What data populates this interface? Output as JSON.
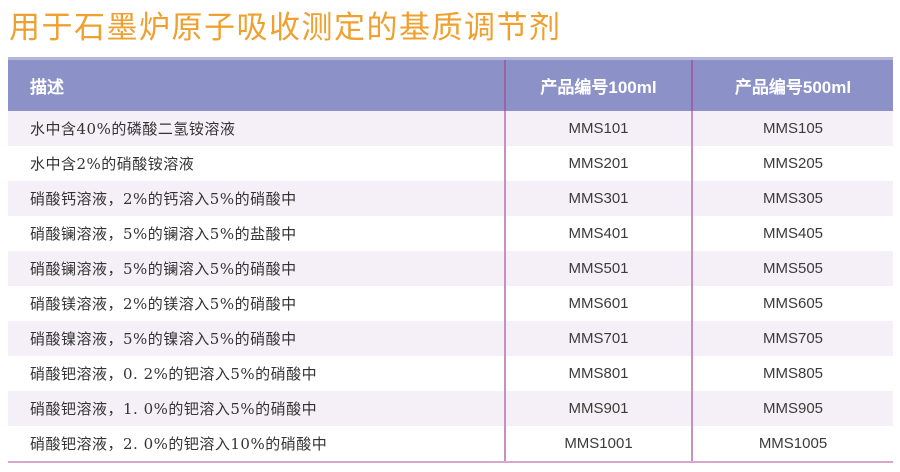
{
  "page_title": "用于石墨炉原子吸收测定的基质调节剂",
  "colors": {
    "title_orange": "#efa02f",
    "header_bg": "#8c92c8",
    "header_top_strip": "#b2b6db",
    "row_alt_lavender": "#f5f0f7",
    "divider_header": "#9b63a4",
    "divider_body": "#c98fc4",
    "bottom_border": "#d8a6cd",
    "body_text": "#333333"
  },
  "table": {
    "headers": {
      "description": "描述",
      "code_100ml": "产品编号100ml",
      "code_500ml": "产品编号500ml"
    },
    "rows": [
      {
        "description": "水中含40%的磷酸二氢铵溶液",
        "code_100ml": "MMS101",
        "code_500ml": "MMS105"
      },
      {
        "description": "水中含2%的硝酸铵溶液",
        "code_100ml": "MMS201",
        "code_500ml": "MMS205"
      },
      {
        "description": "硝酸钙溶液，2%的钙溶入5%的硝酸中",
        "code_100ml": "MMS301",
        "code_500ml": "MMS305"
      },
      {
        "description": "硝酸镧溶液，5%的镧溶入5%的盐酸中",
        "code_100ml": "MMS401",
        "code_500ml": "MMS405"
      },
      {
        "description": "硝酸镧溶液，5%的镧溶入5%的硝酸中",
        "code_100ml": "MMS501",
        "code_500ml": "MMS505"
      },
      {
        "description": "硝酸镁溶液，2%的镁溶入5%的硝酸中",
        "code_100ml": "MMS601",
        "code_500ml": "MMS605"
      },
      {
        "description": "硝酸镍溶液，5%的镍溶入5%的硝酸中",
        "code_100ml": "MMS701",
        "code_500ml": "MMS705"
      },
      {
        "description": "硝酸钯溶液，0. 2%的钯溶入5%的硝酸中",
        "code_100ml": "MMS801",
        "code_500ml": "MMS805"
      },
      {
        "description": "硝酸钯溶液，1. 0%的钯溶入5%的硝酸中",
        "code_100ml": "MMS901",
        "code_500ml": "MMS905"
      },
      {
        "description": "硝酸钯溶液，2. 0%的钯溶入10%的硝酸中",
        "code_100ml": "MMS1001",
        "code_500ml": "MMS1005"
      }
    ]
  }
}
